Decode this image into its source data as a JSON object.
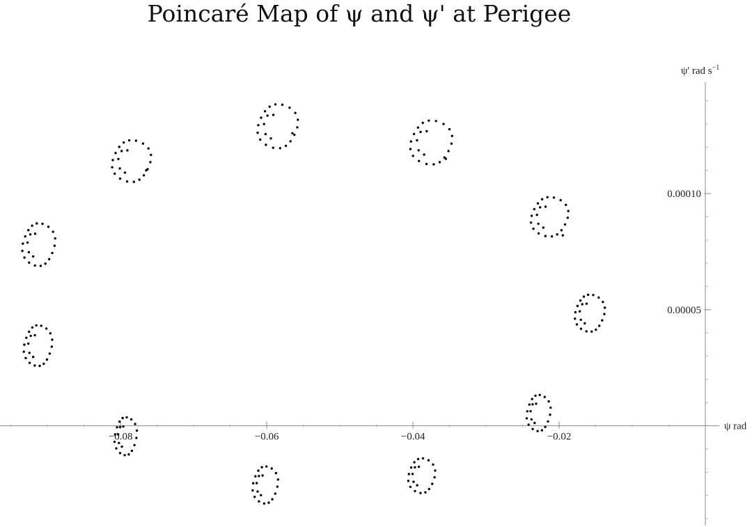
{
  "chart_data": {
    "type": "scatter",
    "title": "Poincaré Map of ψ and ψ' at Perigee",
    "xlabel": "ψ rad",
    "ylabel": "ψ' rad s",
    "ylabel_sup": "−1",
    "xlim": [
      -0.0965,
      0.0003
    ],
    "ylim": [
      -4.3e-05,
      0.000148
    ],
    "grid": false,
    "x_ticks": [
      {
        "value": -0.08,
        "label": "−0.08"
      },
      {
        "value": -0.06,
        "label": "−0.06"
      },
      {
        "value": -0.04,
        "label": "−0.04"
      },
      {
        "value": -0.02,
        "label": "−0.02"
      }
    ],
    "y_ticks": [
      {
        "value": 5e-05,
        "label": "0.00005"
      },
      {
        "value": 0.0001,
        "label": "0.00010"
      }
    ],
    "islands": [
      {
        "cx": -0.0585,
        "cy": 0.000129,
        "rx": 0.0027,
        "ry": 9.5e-06,
        "n": 18,
        "tail": [
          -0.0565,
          0.000126
        ]
      },
      {
        "cx": -0.0785,
        "cy": 0.000114,
        "rx": 0.0026,
        "ry": 9e-06,
        "n": 18,
        "tail": [
          -0.0765,
          0.00011
        ]
      },
      {
        "cx": -0.0375,
        "cy": 0.000122,
        "rx": 0.0028,
        "ry": 9.5e-06,
        "n": 18,
        "tail": [
          -0.0355,
          0.000115
        ]
      },
      {
        "cx": -0.0912,
        "cy": 7.8e-05,
        "rx": 0.0022,
        "ry": 9.2e-06,
        "n": 18,
        "tail": null
      },
      {
        "cx": -0.0213,
        "cy": 9e-05,
        "rx": 0.0025,
        "ry": 8.5e-06,
        "n": 18,
        "tail": [
          -0.0195,
          8.2e-05
        ]
      },
      {
        "cx": -0.0913,
        "cy": 3.45e-05,
        "rx": 0.0019,
        "ry": 8.8e-06,
        "n": 18,
        "tail": null
      },
      {
        "cx": -0.0158,
        "cy": 4.85e-05,
        "rx": 0.002,
        "ry": 8e-06,
        "n": 18,
        "tail": null
      },
      {
        "cx": -0.0793,
        "cy": -4.5e-06,
        "rx": 0.0015,
        "ry": 8.2e-06,
        "n": 16,
        "tail": null
      },
      {
        "cx": -0.0228,
        "cy": 5.5e-06,
        "rx": 0.0016,
        "ry": 7.8e-06,
        "n": 16,
        "tail": null
      },
      {
        "cx": -0.0602,
        "cy": -2.55e-05,
        "rx": 0.0017,
        "ry": 8e-06,
        "n": 16,
        "tail": null
      },
      {
        "cx": -0.0388,
        "cy": -2.15e-05,
        "rx": 0.0018,
        "ry": 7.5e-06,
        "n": 16,
        "tail": null
      }
    ]
  }
}
